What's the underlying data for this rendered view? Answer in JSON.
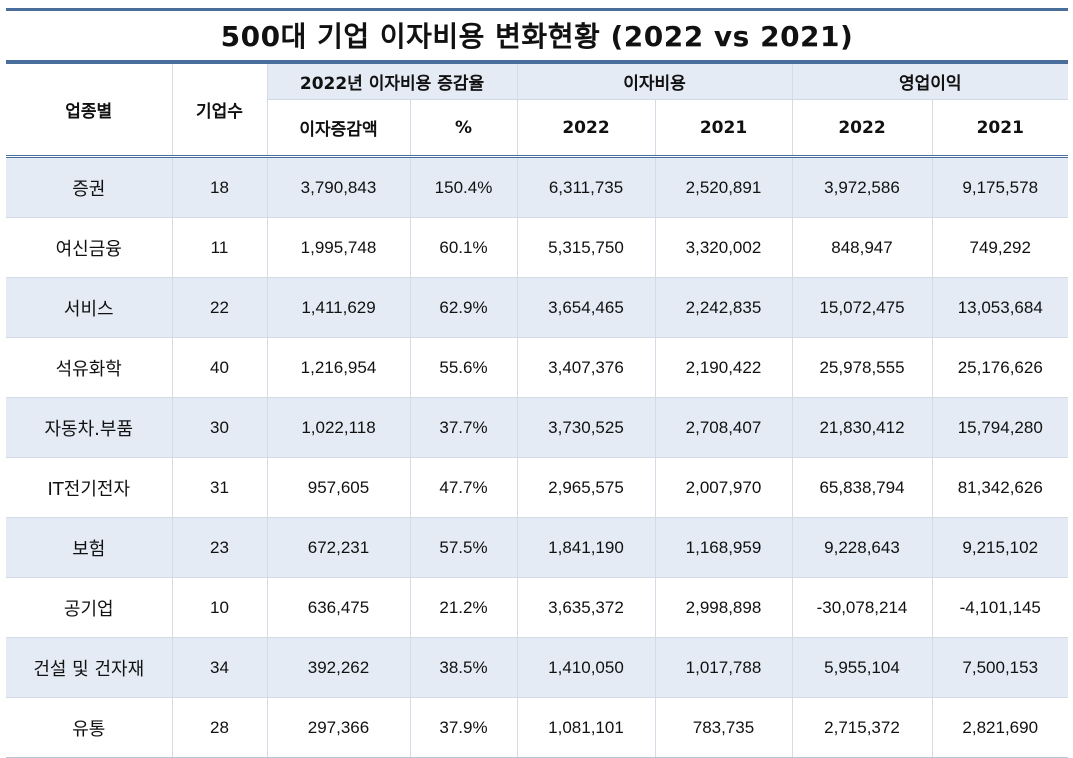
{
  "title": "500대 기업 이자비용 변화현황 (2022 vs 2021)",
  "header": {
    "sector": "업종별",
    "count": "기업수",
    "group_change": "2022년 이자비용 증감율",
    "group_interest": "이자비용",
    "group_profit": "영업이익",
    "sub_increase": "이자증감액",
    "sub_pct": "%",
    "sub_interest_2022": "2022",
    "sub_interest_2021": "2021",
    "sub_profit_2022": "2022",
    "sub_profit_2021": "2021"
  },
  "rows": [
    {
      "sector": "증권",
      "count": "18",
      "increase": "3,790,843",
      "pct": "150.4%",
      "interest_2022": "6,311,735",
      "interest_2021": "2,520,891",
      "profit_2022": "3,972,586",
      "profit_2021": "9,175,578"
    },
    {
      "sector": "여신금융",
      "count": "11",
      "increase": "1,995,748",
      "pct": "60.1%",
      "interest_2022": "5,315,750",
      "interest_2021": "3,320,002",
      "profit_2022": "848,947",
      "profit_2021": "749,292"
    },
    {
      "sector": "서비스",
      "count": "22",
      "increase": "1,411,629",
      "pct": "62.9%",
      "interest_2022": "3,654,465",
      "interest_2021": "2,242,835",
      "profit_2022": "15,072,475",
      "profit_2021": "13,053,684"
    },
    {
      "sector": "석유화학",
      "count": "40",
      "increase": "1,216,954",
      "pct": "55.6%",
      "interest_2022": "3,407,376",
      "interest_2021": "2,190,422",
      "profit_2022": "25,978,555",
      "profit_2021": "25,176,626"
    },
    {
      "sector": "자동차.부품",
      "count": "30",
      "increase": "1,022,118",
      "pct": "37.7%",
      "interest_2022": "3,730,525",
      "interest_2021": "2,708,407",
      "profit_2022": "21,830,412",
      "profit_2021": "15,794,280"
    },
    {
      "sector": "IT전기전자",
      "count": "31",
      "increase": "957,605",
      "pct": "47.7%",
      "interest_2022": "2,965,575",
      "interest_2021": "2,007,970",
      "profit_2022": "65,838,794",
      "profit_2021": "81,342,626"
    },
    {
      "sector": "보험",
      "count": "23",
      "increase": "672,231",
      "pct": "57.5%",
      "interest_2022": "1,841,190",
      "interest_2021": "1,168,959",
      "profit_2022": "9,228,643",
      "profit_2021": "9,215,102"
    },
    {
      "sector": "공기업",
      "count": "10",
      "increase": "636,475",
      "pct": "21.2%",
      "interest_2022": "3,635,372",
      "interest_2021": "2,998,898",
      "profit_2022": "-30,078,214",
      "profit_2021": "-4,101,145"
    },
    {
      "sector": "건설 및 건자재",
      "count": "34",
      "increase": "392,262",
      "pct": "38.5%",
      "interest_2022": "1,410,050",
      "interest_2021": "1,017,788",
      "profit_2022": "5,955,104",
      "profit_2021": "7,500,153"
    },
    {
      "sector": "유통",
      "count": "28",
      "increase": "297,366",
      "pct": "37.9%",
      "interest_2022": "1,081,101",
      "interest_2021": "783,735",
      "profit_2022": "2,715,372",
      "profit_2021": "2,821,690"
    }
  ]
}
